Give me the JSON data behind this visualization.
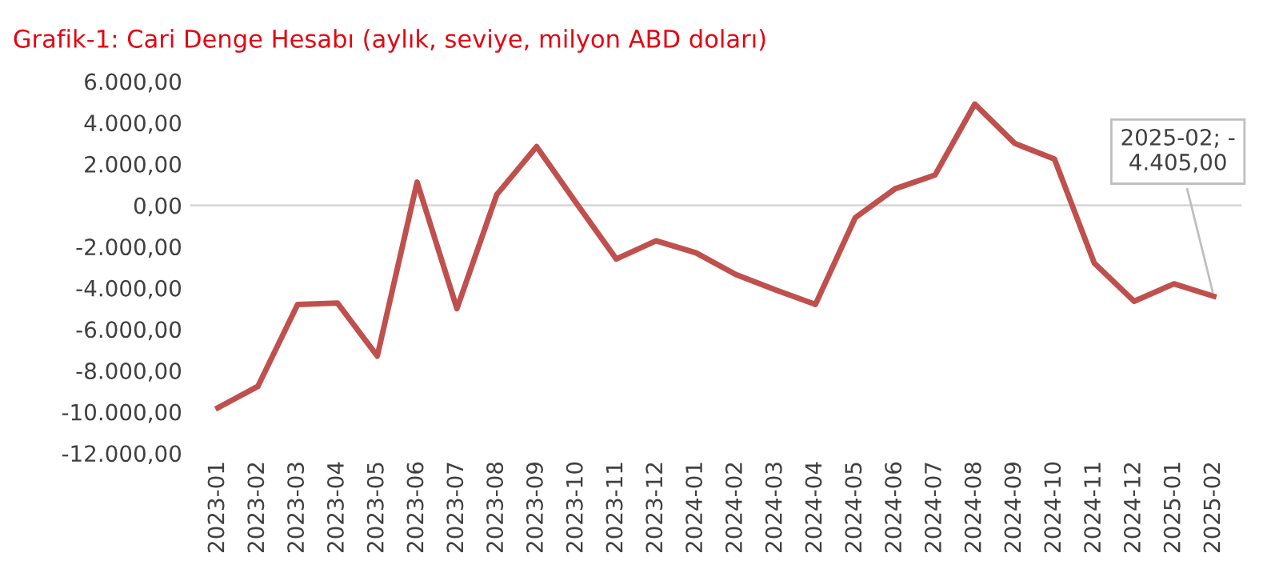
{
  "chart_data": {
    "type": "line",
    "title": "Grafik-1: Cari Denge Hesabı (aylık, seviye, milyon ABD doları)",
    "categories": [
      "2023-01",
      "2023-02",
      "2023-03",
      "2023-04",
      "2023-05",
      "2023-06",
      "2023-07",
      "2023-08",
      "2023-09",
      "2023-10",
      "2023-11",
      "2023-12",
      "2024-01",
      "2024-02",
      "2024-03",
      "2024-04",
      "2024-05",
      "2024-06",
      "2024-07",
      "2024-08",
      "2024-09",
      "2024-10",
      "2024-11",
      "2024-12",
      "2025-01",
      "2025-02"
    ],
    "series": [
      {
        "color": "#c0504d",
        "values": [
          -9800,
          -8770,
          -4800,
          -4730,
          -7300,
          1120,
          -5000,
          520,
          2840,
          100,
          -2600,
          -1720,
          -2300,
          -3350,
          -4100,
          -4800,
          -600,
          800,
          1460,
          4900,
          3000,
          2240,
          -2800,
          -4650,
          -3800,
          -4405
        ]
      }
    ],
    "ylim": [
      -12000,
      6000
    ],
    "yticks": [
      {
        "value": -12000,
        "label": "-12.000,00"
      },
      {
        "value": -10000,
        "label": "-10.000,00"
      },
      {
        "value": -8000,
        "label": "-8.000,00"
      },
      {
        "value": -6000,
        "label": "-6.000,00"
      },
      {
        "value": -4000,
        "label": "-4.000,00"
      },
      {
        "value": -2000,
        "label": "-2.000,00"
      },
      {
        "value": 0,
        "label": "0,00"
      },
      {
        "value": 2000,
        "label": "2.000,00"
      },
      {
        "value": 4000,
        "label": "4.000,00"
      },
      {
        "value": 6000,
        "label": "6.000,00"
      }
    ],
    "ref_lines": [
      {
        "axis": "y",
        "value": 0,
        "color": "#d9d9d9"
      }
    ],
    "annotations": [
      {
        "text": "2025-02; -\n4.405,00",
        "x": "2025-02",
        "y": -4405
      }
    ],
    "grid": false,
    "legend": false,
    "marker": "none",
    "line_style": "solid"
  }
}
